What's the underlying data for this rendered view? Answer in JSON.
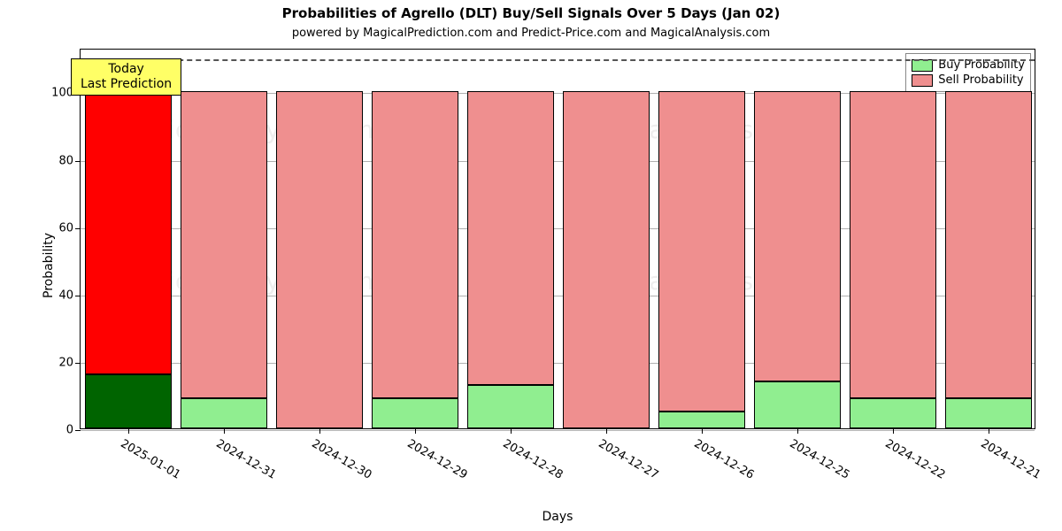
{
  "chart": {
    "type": "stacked-bar",
    "title": "Probabilities of Agrello (DLT) Buy/Sell Signals Over 5 Days (Jan 02)",
    "title_fontsize": 15,
    "subtitle": "powered by MagicalPrediction.com and Predict-Price.com and MagicalAnalysis.com",
    "subtitle_fontsize": 13,
    "xlabel": "Days",
    "ylabel": "Probability",
    "axis_label_fontsize": 14,
    "plot_bg": "#ffffff",
    "border_color": "#000000",
    "grid_color": "#b0b0b0",
    "ylim": [
      0,
      113
    ],
    "yticks": [
      0,
      20,
      40,
      60,
      80,
      100
    ],
    "reference_line": {
      "y": 110,
      "color": "#555555"
    },
    "categories": [
      "2025-01-01",
      "2024-12-31",
      "2024-12-30",
      "2024-12-29",
      "2024-12-28",
      "2024-12-27",
      "2024-12-26",
      "2024-12-25",
      "2024-12-22",
      "2024-12-21"
    ],
    "bar_width": 0.9,
    "series": {
      "buy": {
        "label": "Buy Probability",
        "colors_today": "#006400",
        "color": "#90ee90"
      },
      "sell": {
        "label": "Sell Probability",
        "colors_today": "#ff0000",
        "color": "#ef8f8f"
      }
    },
    "data": [
      {
        "buy": 16,
        "sell": 84,
        "today": true
      },
      {
        "buy": 9,
        "sell": 91,
        "today": false
      },
      {
        "buy": 0,
        "sell": 100,
        "today": false
      },
      {
        "buy": 9,
        "sell": 91,
        "today": false
      },
      {
        "buy": 13,
        "sell": 87,
        "today": false
      },
      {
        "buy": 0,
        "sell": 100,
        "today": false
      },
      {
        "buy": 5,
        "sell": 95,
        "today": false
      },
      {
        "buy": 14,
        "sell": 86,
        "today": false
      },
      {
        "buy": 9,
        "sell": 91,
        "today": false
      },
      {
        "buy": 9,
        "sell": 91,
        "today": false
      }
    ],
    "annotation": {
      "line1": "Today",
      "line2": "Last Prediction",
      "bg": "#ffff66",
      "fontsize": 14,
      "x_index": 0,
      "y": 105
    },
    "legend": {
      "position": "top-right",
      "items": [
        {
          "key": "buy",
          "label": "Buy Probability",
          "color": "#90ee90"
        },
        {
          "key": "sell",
          "label": "Sell Probability",
          "color": "#ef8f8f"
        }
      ]
    },
    "watermarks": {
      "text1": "MagicalAnalysis.com",
      "text2": "MagicalAnalysis.com",
      "color": "#7a7a7a",
      "fontsize": 28
    }
  }
}
